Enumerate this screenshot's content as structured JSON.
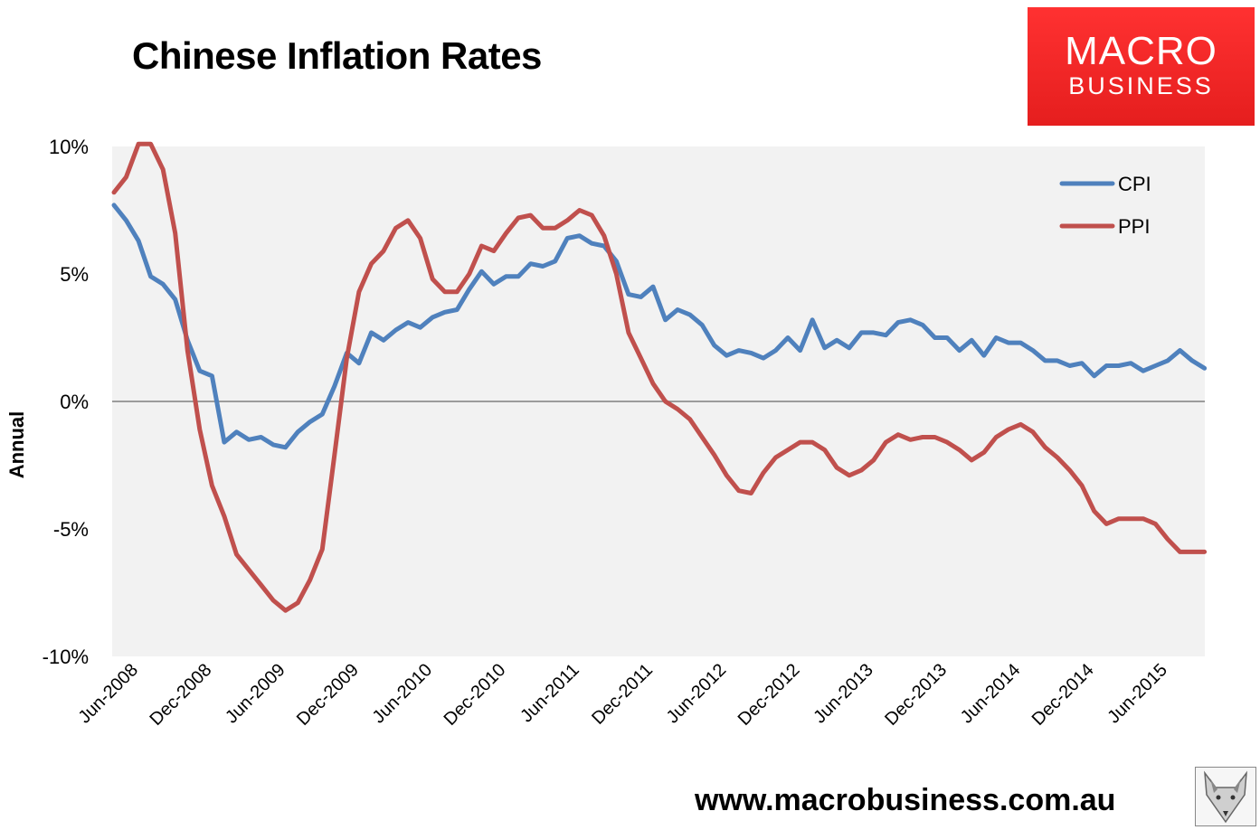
{
  "header": {
    "title": "Chinese Inflation Rates",
    "logo_line1": "MACRO",
    "logo_line2": "BUSINESS"
  },
  "footer": {
    "url": "www.macrobusiness.com.au",
    "fox_image": "fox-logo-icon"
  },
  "colors": {
    "cpi": "#4f81bd",
    "ppi": "#c0504d",
    "plot_bg": "#f2f2f2",
    "logo_red": "#ee2424"
  },
  "chart_data": {
    "type": "line",
    "title": "Chinese Inflation Rates",
    "xlabel": "",
    "ylabel": "Annual",
    "ylim": [
      -10,
      10
    ],
    "yticks": [
      10,
      5,
      0,
      -5,
      -10
    ],
    "ytick_labels": [
      "10%",
      "5%",
      "0%",
      "-5%",
      "-10%"
    ],
    "xtick_labels": [
      "Jun-2008",
      "Dec-2008",
      "Jun-2009",
      "Dec-2009",
      "Jun-2010",
      "Dec-2010",
      "Jun-2011",
      "Dec-2011",
      "Jun-2012",
      "Dec-2012",
      "Jun-2013",
      "Dec-2013",
      "Jun-2014",
      "Dec-2014",
      "Jun-2015"
    ],
    "xtick_every": 6,
    "start": "May-2008",
    "legend": {
      "position": "top-right"
    },
    "series": [
      {
        "name": "CPI",
        "color": "#4f81bd",
        "values": [
          7.7,
          7.1,
          6.3,
          4.9,
          4.6,
          4.0,
          2.4,
          1.2,
          1.0,
          -1.6,
          -1.2,
          -1.5,
          -1.4,
          -1.7,
          -1.8,
          -1.2,
          -0.8,
          -0.5,
          0.6,
          1.9,
          1.5,
          2.7,
          2.4,
          2.8,
          3.1,
          2.9,
          3.3,
          3.5,
          3.6,
          4.4,
          5.1,
          4.6,
          4.9,
          4.9,
          5.4,
          5.3,
          5.5,
          6.4,
          6.5,
          6.2,
          6.1,
          5.5,
          4.2,
          4.1,
          4.5,
          3.2,
          3.6,
          3.4,
          3.0,
          2.2,
          1.8,
          2.0,
          1.9,
          1.7,
          2.0,
          2.5,
          2.0,
          3.2,
          2.1,
          2.4,
          2.1,
          2.7,
          2.7,
          2.6,
          3.1,
          3.2,
          3.0,
          2.5,
          2.5,
          2.0,
          2.4,
          1.8,
          2.5,
          2.3,
          2.3,
          2.0,
          1.6,
          1.6,
          1.4,
          1.5,
          1.0,
          1.4,
          1.4,
          1.5,
          1.2,
          1.4,
          1.6,
          2.0,
          1.6,
          1.3
        ]
      },
      {
        "name": "PPI",
        "color": "#c0504d",
        "values": [
          8.2,
          8.8,
          10.1,
          10.1,
          9.1,
          6.6,
          2.0,
          -1.1,
          -3.3,
          -4.5,
          -6.0,
          -6.6,
          -7.2,
          -7.8,
          -8.2,
          -7.9,
          -7.0,
          -5.8,
          -2.1,
          1.7,
          4.3,
          5.4,
          5.9,
          6.8,
          7.1,
          6.4,
          4.8,
          4.3,
          4.3,
          5.0,
          6.1,
          5.9,
          6.6,
          7.2,
          7.3,
          6.8,
          6.8,
          7.1,
          7.5,
          7.3,
          6.5,
          5.0,
          2.7,
          1.7,
          0.7,
          0.0,
          -0.3,
          -0.7,
          -1.4,
          -2.1,
          -2.9,
          -3.5,
          -3.6,
          -2.8,
          -2.2,
          -1.9,
          -1.6,
          -1.6,
          -1.9,
          -2.6,
          -2.9,
          -2.7,
          -2.3,
          -1.6,
          -1.3,
          -1.5,
          -1.4,
          -1.4,
          -1.6,
          -1.9,
          -2.3,
          -2.0,
          -1.4,
          -1.1,
          -0.9,
          -1.2,
          -1.8,
          -2.2,
          -2.7,
          -3.3,
          -4.3,
          -4.8,
          -4.6,
          -4.6,
          -4.6,
          -4.8,
          -5.4,
          -5.9,
          -5.9,
          -5.9
        ]
      }
    ]
  }
}
